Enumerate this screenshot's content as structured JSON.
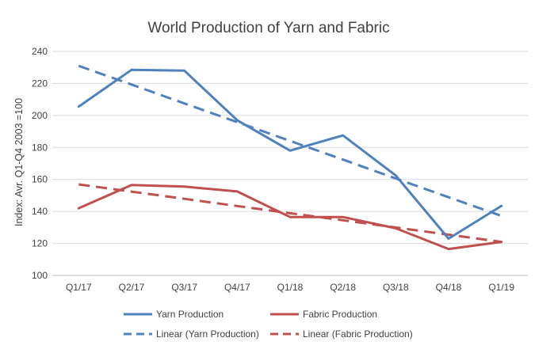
{
  "chart_data": {
    "type": "line",
    "title": "World Production of Yarn and Fabric",
    "xlabel": "",
    "ylabel": "Index: Avr. Q1-Q4 2003 =100",
    "ylim": [
      100,
      240
    ],
    "yticks": [
      100,
      120,
      140,
      160,
      180,
      200,
      220,
      240
    ],
    "categories": [
      "Q1/17",
      "Q2/17",
      "Q3/17",
      "Q4/17",
      "Q1/18",
      "Q2/18",
      "Q3/18",
      "Q4/18",
      "Q1/19"
    ],
    "grid": true,
    "legend_position": "bottom",
    "series": [
      {
        "name": "Yarn Production",
        "style": "solid",
        "color": "#4f81bd",
        "values": [
          205.5,
          228.5,
          228,
          197,
          178,
          187.5,
          162.5,
          123,
          143.5
        ]
      },
      {
        "name": "Fabric Production",
        "style": "solid",
        "color": "#c0504d",
        "values": [
          142,
          156.5,
          155.5,
          152.5,
          136.5,
          136.5,
          129.5,
          116.5,
          121
        ]
      },
      {
        "name": "Linear (Yarn Production)",
        "style": "dashed",
        "color": "#4f81bd",
        "values": [
          231,
          219.3,
          207.5,
          195.8,
          184.1,
          172.4,
          160.6,
          148.9,
          137.2
        ]
      },
      {
        "name": "Linear (Fabric Production)",
        "style": "dashed",
        "color": "#c0504d",
        "values": [
          156.9,
          152.4,
          147.9,
          143.4,
          138.9,
          134.5,
          130,
          125.5,
          121
        ]
      }
    ]
  }
}
